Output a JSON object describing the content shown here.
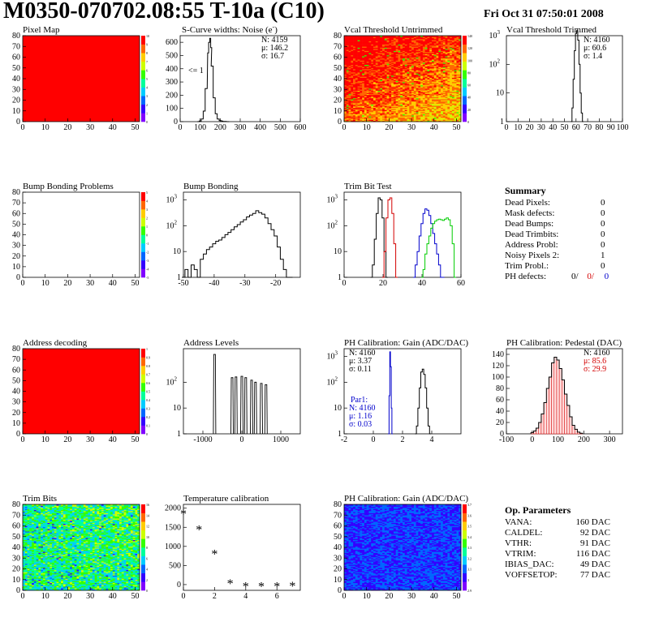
{
  "header": {
    "title": "M0350-070702.08:55 T-10a (C10)",
    "date": "Fri Oct 31 07:50:01 2008"
  },
  "colors": {
    "map_full": "#ff0000",
    "hist_line": "#000000",
    "series_red": "#d40000",
    "series_blue": "#0000cc",
    "series_green": "#00cc00",
    "palette": [
      "#7f00ff",
      "#3300ff",
      "#0066ff",
      "#00ccff",
      "#00ff99",
      "#33ff00",
      "#ccff00",
      "#ffcc00",
      "#ff6600",
      "#ff0000"
    ]
  },
  "chart_data": [
    {
      "id": "pixel-map",
      "type": "heatmap",
      "title": "Pixel Map",
      "xlim": [
        0,
        52
      ],
      "ylim": [
        0,
        80
      ],
      "xticks": [
        0,
        10,
        20,
        30,
        40,
        50
      ],
      "yticks": [
        0,
        10,
        20,
        30,
        40,
        50,
        60,
        70,
        80
      ],
      "fill": "uniform-max",
      "zticks": [
        "10",
        "9",
        "8",
        "7",
        "6",
        "5",
        "4",
        "3",
        "2",
        "1",
        "0"
      ]
    },
    {
      "id": "scurve-noise",
      "type": "line",
      "title": "S-Curve widths: Noise (e",
      "title_sup": "-",
      "title_close": ")",
      "xlim": [
        0,
        600
      ],
      "ylim": [
        0,
        650
      ],
      "xticks": [
        0,
        100,
        200,
        300,
        400,
        500,
        600
      ],
      "yticks": [
        0,
        100,
        200,
        300,
        400,
        500,
        600
      ],
      "stats": {
        "N": "N: 4159",
        "mu": "μ: 146.2",
        "sigma": "σ: 16.7"
      },
      "annotation": "<= 1",
      "x": [
        90,
        100,
        110,
        120,
        130,
        140,
        145,
        150,
        155,
        160,
        170,
        180,
        190,
        200,
        210,
        220,
        240
      ],
      "y": [
        0,
        5,
        20,
        80,
        250,
        520,
        600,
        630,
        560,
        420,
        180,
        60,
        20,
        8,
        4,
        2,
        0
      ]
    },
    {
      "id": "vcal-untrimmed",
      "type": "heatmap",
      "title": "Vcal Threshold Untrimmed",
      "xlim": [
        0,
        52
      ],
      "ylim": [
        0,
        80
      ],
      "xticks": [
        0,
        10,
        20,
        30,
        40,
        50
      ],
      "yticks": [
        0,
        10,
        20,
        30,
        40,
        50,
        60,
        70,
        80
      ],
      "zticks": [
        "140",
        "120",
        "100",
        "80",
        "60",
        "40",
        "20",
        "0"
      ],
      "pattern": "orange-gradient"
    },
    {
      "id": "vcal-trimmed",
      "type": "line",
      "title": "Vcal Threshold Trimmed",
      "log_y": true,
      "xlim": [
        0,
        100
      ],
      "ylim_decades": [
        0,
        3
      ],
      "xticks": [
        0,
        10,
        20,
        30,
        40,
        50,
        60,
        70,
        80,
        90,
        100
      ],
      "ytick_labels": [
        "1",
        "10",
        "10",
        "10"
      ],
      "ytick_sups": [
        "",
        "",
        "2",
        "3"
      ],
      "stats": {
        "N": "N: 4160",
        "mu": "μ: 60.6",
        "sigma": "σ: 1.4"
      },
      "x": [
        56,
        57,
        58,
        59,
        60,
        61,
        62,
        63,
        64,
        65,
        66
      ],
      "y": [
        1,
        3,
        30,
        300,
        1200,
        1500,
        700,
        100,
        10,
        2,
        1
      ]
    },
    {
      "id": "bump-problems",
      "type": "heatmap",
      "title": "Bump Bonding Problems",
      "xlim": [
        0,
        52
      ],
      "ylim": [
        0,
        80
      ],
      "xticks": [
        0,
        10,
        20,
        30,
        40,
        50
      ],
      "yticks": [
        0,
        10,
        20,
        30,
        40,
        50,
        60,
        70,
        80
      ],
      "zticks": [
        "5",
        "4",
        "3",
        "2",
        "1",
        "0",
        "-1",
        "-2",
        "-3",
        "-4",
        "-5"
      ],
      "fill": "empty"
    },
    {
      "id": "bump-bonding",
      "type": "line",
      "title": "Bump Bonding",
      "log_y": true,
      "xlim": [
        -50,
        -12
      ],
      "ylim_decades": [
        0,
        3.3
      ],
      "xticks": [
        -50,
        -40,
        -30,
        -20
      ],
      "ytick_labels": [
        "1",
        "10",
        "10",
        "10"
      ],
      "ytick_sups": [
        "",
        "",
        "2",
        "3"
      ],
      "x": [
        -50,
        -49,
        -48,
        -47,
        -46,
        -45,
        -44,
        -43,
        -42,
        -41,
        -40,
        -39,
        -38,
        -37,
        -36,
        -35,
        -34,
        -33,
        -32,
        -31,
        -30,
        -29,
        -28,
        -27,
        -26,
        -25,
        -24,
        -23,
        -22,
        -21,
        -20,
        -19,
        -18,
        -17,
        -16,
        -15
      ],
      "y": [
        1,
        2,
        1,
        3,
        2,
        1,
        5,
        8,
        12,
        15,
        20,
        25,
        28,
        35,
        45,
        55,
        70,
        90,
        110,
        140,
        170,
        220,
        260,
        300,
        380,
        320,
        280,
        200,
        120,
        70,
        40,
        15,
        5,
        2,
        1,
        1
      ]
    },
    {
      "id": "trim-bit-test",
      "type": "line",
      "title": "Trim Bit Test",
      "log_y": true,
      "xlim": [
        0,
        60
      ],
      "ylim_decades": [
        0,
        3.3
      ],
      "xticks": [
        0,
        20,
        40,
        60
      ],
      "ytick_labels": [
        "1",
        "10",
        "10",
        "10"
      ],
      "ytick_sups": [
        "",
        "",
        "2",
        "3"
      ],
      "series": [
        {
          "color": "#000000",
          "x": [
            14,
            15,
            16,
            17,
            18,
            19,
            20,
            21,
            22
          ],
          "y": [
            1,
            3,
            30,
            300,
            1200,
            1000,
            200,
            10,
            1
          ]
        },
        {
          "color": "#d40000",
          "x": [
            20,
            21,
            22,
            23,
            24,
            25,
            26,
            27
          ],
          "y": [
            1,
            10,
            200,
            1000,
            1200,
            300,
            20,
            1
          ]
        },
        {
          "color": "#0000cc",
          "x": [
            36,
            37,
            38,
            39,
            40,
            41,
            42,
            43,
            44,
            45,
            46,
            47,
            48,
            49,
            50,
            51
          ],
          "y": [
            1,
            3,
            10,
            40,
            120,
            300,
            450,
            400,
            250,
            120,
            50,
            20,
            8,
            3,
            1,
            1
          ]
        },
        {
          "color": "#00cc00",
          "x": [
            40,
            41,
            42,
            43,
            44,
            45,
            46,
            47,
            48,
            49,
            50,
            51,
            52,
            53,
            54,
            55,
            56,
            57
          ],
          "y": [
            1,
            2,
            8,
            20,
            40,
            80,
            120,
            150,
            170,
            180,
            170,
            160,
            180,
            200,
            170,
            100,
            20,
            1
          ]
        }
      ]
    },
    {
      "id": "address-decoding",
      "type": "heatmap",
      "title": "Address decoding",
      "xlim": [
        0,
        52
      ],
      "ylim": [
        0,
        80
      ],
      "xticks": [
        0,
        10,
        20,
        30,
        40,
        50
      ],
      "yticks": [
        0,
        10,
        20,
        30,
        40,
        50,
        60,
        70,
        80
      ],
      "zticks": [
        "1",
        "0.9",
        "0.8",
        "0.7",
        "0.6",
        "0.5",
        "0.4",
        "0.3",
        "0.2",
        "0.1",
        "0"
      ],
      "fill": "uniform-max"
    },
    {
      "id": "address-levels",
      "type": "line",
      "title": "Address Levels",
      "log_y": true,
      "xlim": [
        -1500,
        1500
      ],
      "ylim_decades": [
        0,
        3.3
      ],
      "xticks": [
        -1000,
        0,
        1000
      ],
      "ytick_labels": [
        "1",
        "10",
        "10"
      ],
      "ytick_sups": [
        "",
        "",
        "2"
      ],
      "peaks": [
        {
          "x": -700,
          "h": 1200
        },
        {
          "x": -250,
          "h": 150
        },
        {
          "x": -150,
          "h": 160
        },
        {
          "x": 0,
          "h": 170
        },
        {
          "x": 100,
          "h": 150
        },
        {
          "x": 250,
          "h": 120
        },
        {
          "x": 350,
          "h": 100
        },
        {
          "x": 500,
          "h": 90
        },
        {
          "x": 620,
          "h": 80
        }
      ]
    },
    {
      "id": "ph-gain-hist",
      "type": "line",
      "title": "PH Calibration: Gain (ADC/DAC)",
      "log_y": true,
      "xlim": [
        -2,
        6
      ],
      "ylim_decades": [
        0,
        3.3
      ],
      "xticks": [
        -2,
        0,
        2,
        4
      ],
      "ytick_labels": [
        "1",
        "10",
        "10",
        "10"
      ],
      "ytick_sups": [
        "",
        "",
        "2",
        "3"
      ],
      "stats": {
        "N": "N: 4160",
        "mu": "μ: 3.37",
        "sigma": "σ: 0.11"
      },
      "par_stats": {
        "label": "Par1:",
        "N": "N: 4160",
        "mu": "μ: 1.16",
        "sigma": "σ: 0.03"
      },
      "series": [
        {
          "color": "#000000",
          "x": [
            2.9,
            3.0,
            3.1,
            3.2,
            3.3,
            3.4,
            3.5,
            3.6,
            3.7,
            3.8,
            3.9
          ],
          "y": [
            1,
            2,
            10,
            60,
            250,
            320,
            200,
            60,
            10,
            2,
            1
          ]
        },
        {
          "color": "#0000cc",
          "x": [
            1.05,
            1.1,
            1.15,
            1.2,
            1.25,
            1.3
          ],
          "y": [
            1,
            30,
            1500,
            400,
            10,
            1
          ]
        }
      ]
    },
    {
      "id": "ph-pedestal",
      "type": "line",
      "title": "PH Calibration: Pedestal (DAC)",
      "xlim": [
        -100,
        350
      ],
      "ylim": [
        0,
        150
      ],
      "xticks": [
        -100,
        0,
        100,
        200,
        300
      ],
      "yticks": [
        0,
        20,
        40,
        60,
        80,
        100,
        120,
        140
      ],
      "stats": {
        "N": "N: 4160",
        "mu": "μ: 85.6",
        "sigma": "σ: 29.9"
      },
      "x": [
        0,
        10,
        20,
        30,
        40,
        50,
        60,
        70,
        80,
        90,
        100,
        110,
        120,
        130,
        140,
        150,
        160,
        170,
        180,
        190
      ],
      "y": [
        2,
        5,
        10,
        20,
        35,
        55,
        80,
        100,
        125,
        135,
        130,
        115,
        95,
        70,
        50,
        30,
        15,
        8,
        3,
        1
      ]
    },
    {
      "id": "trim-bits",
      "type": "heatmap",
      "title": "Trim Bits",
      "xlim": [
        0,
        52
      ],
      "ylim": [
        0,
        80
      ],
      "xticks": [
        0,
        10,
        20,
        30,
        40,
        50
      ],
      "yticks": [
        0,
        10,
        20,
        30,
        40,
        50,
        60,
        70,
        80
      ],
      "zticks": [
        "16",
        "14",
        "12",
        "10",
        "8",
        "6",
        "4",
        "2",
        "0"
      ],
      "pattern": "green-noise"
    },
    {
      "id": "temperature-calibration",
      "type": "scatter",
      "title": "Temperature calibration",
      "xlim": [
        0,
        7.5
      ],
      "ylim": [
        -150,
        2100
      ],
      "xticks": [
        0,
        2,
        4,
        6
      ],
      "yticks": [
        0,
        500,
        1000,
        1500,
        2000
      ],
      "x": [
        0,
        1,
        2,
        3,
        4,
        5,
        6,
        7
      ],
      "y": [
        1870,
        1450,
        820,
        40,
        -30,
        -30,
        -30,
        -20
      ]
    },
    {
      "id": "ph-gain-map",
      "type": "heatmap",
      "title": "PH Calibration: Gain (ADC/DAC)",
      "xlim": [
        0,
        52
      ],
      "ylim": [
        0,
        80
      ],
      "xticks": [
        0,
        10,
        20,
        30,
        40,
        50
      ],
      "yticks": [
        0,
        10,
        20,
        30,
        40,
        50,
        60,
        70,
        80
      ],
      "zticks": [
        "3.7",
        "3.6",
        "3.5",
        "3.4",
        "3.3",
        "3.2",
        "3.1",
        "3",
        "2.9"
      ],
      "pattern": "column-stripes"
    }
  ],
  "summary": {
    "title": "Summary",
    "rows": [
      {
        "label": "Dead Pixels:",
        "value": "0"
      },
      {
        "label": "Mask defects:",
        "value": "0"
      },
      {
        "label": "Dead Bumps:",
        "value": "0"
      },
      {
        "label": "Dead Trimbits:",
        "value": "0"
      },
      {
        "label": "Address Probl:",
        "value": "0"
      },
      {
        "label": "Noisy Pixels 2:",
        "value": "1"
      },
      {
        "label": "Trim Probl.:",
        "value": "0"
      }
    ],
    "ph_label": "PH defects:",
    "ph_values": [
      {
        "text": "0/",
        "color": "#000000"
      },
      {
        "text": "0/",
        "color": "#d40000"
      },
      {
        "text": "0",
        "color": "#0000cc"
      }
    ]
  },
  "op_params": {
    "title": "Op. Parameters",
    "rows": [
      {
        "label": "VANA:",
        "value": "160 DAC"
      },
      {
        "label": "CALDEL:",
        "value": "92 DAC"
      },
      {
        "label": "VTHR:",
        "value": "91 DAC"
      },
      {
        "label": "VTRIM:",
        "value": "116 DAC"
      },
      {
        "label": "IBIAS_DAC:",
        "value": "49 DAC"
      },
      {
        "label": "VOFFSETOP:",
        "value": "77 DAC"
      }
    ]
  }
}
